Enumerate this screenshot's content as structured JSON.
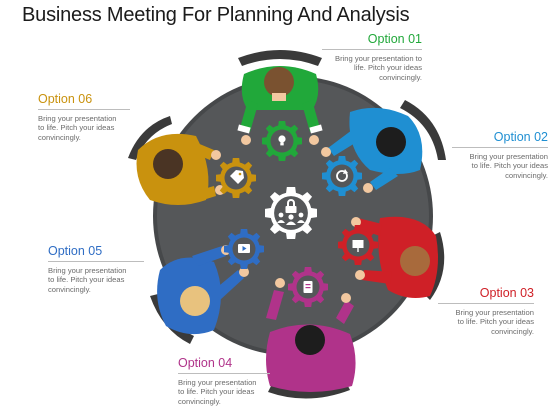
{
  "title": "Business Meeting For Planning And Analysis",
  "options": [
    {
      "label": "Option 01",
      "color": "#21a83a",
      "text": [
        "Bring your presentation to",
        "life. Pitch your ideas",
        "convincingly."
      ]
    },
    {
      "label": "Option 02",
      "color": "#1f8fd2",
      "text": [
        "Bring your presentation",
        "to life. Pitch your ideas",
        "convincingly."
      ]
    },
    {
      "label": "Option 03",
      "color": "#cf2027",
      "text": [
        "Bring your presentation",
        "to life. Pitch your ideas",
        "convincingly."
      ]
    },
    {
      "label": "Option 04",
      "color": "#b0338a",
      "text": [
        "Bring your presentation",
        "to life. Pitch your ideas",
        "convincingly."
      ]
    },
    {
      "label": "Option 05",
      "color": "#2f6dc4",
      "text": [
        "Bring your presentation",
        "to life. Pitch your ideas",
        "convincingly."
      ]
    },
    {
      "label": "Option 06",
      "color": "#c9920e",
      "text": [
        "Bring your presentation",
        "to life. Pitch your ideas",
        "convincingly."
      ]
    }
  ],
  "colors": {
    "table": "#555759",
    "table_edge": "#46484a",
    "chair": "#3a3a3a",
    "center_gear": "#ffffff"
  },
  "icons": [
    "lightbulb-icon",
    "refresh-icon",
    "presentation-icon",
    "document-icon",
    "play-icon",
    "tag-icon",
    "lock-team-icon"
  ]
}
